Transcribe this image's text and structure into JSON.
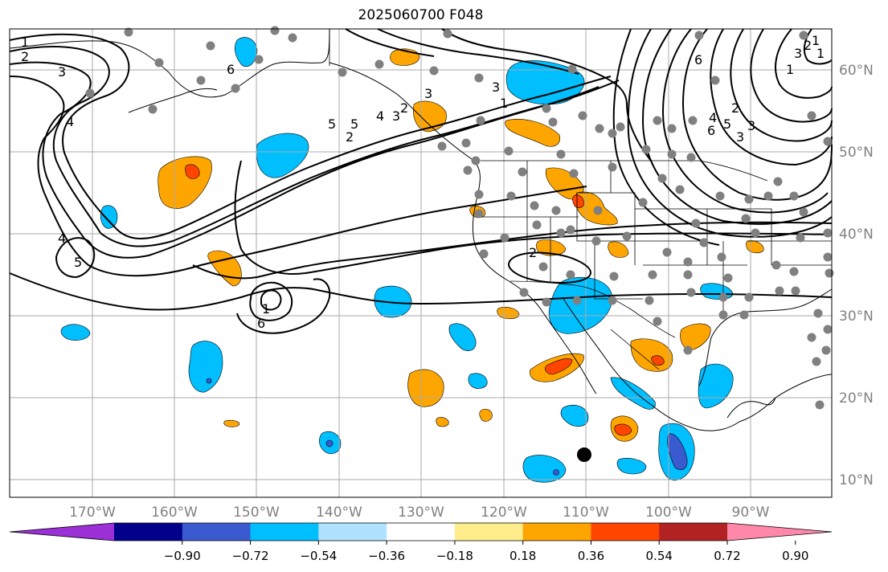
{
  "title": "2025060700 F048",
  "lon_labels": [
    "170°W",
    "160°W",
    "150°W",
    "140°W",
    "130°W",
    "120°W",
    "110°W",
    "100°W",
    "90°W"
  ],
  "lat_labels": [
    "60°N",
    "50°N",
    "40°N",
    "30°N",
    "20°N",
    "10°N"
  ],
  "colorbar": {
    "tick_labels": [
      "−0.90",
      "−0.72",
      "−0.54",
      "−0.36",
      "−0.18",
      "0.18",
      "0.36",
      "0.54",
      "0.72",
      "0.90"
    ],
    "colors": [
      "#9b30d6",
      "#00008b",
      "#3a5bd0",
      "#00bfff",
      "#b0e2ff",
      "#ffffff",
      "#ffec8b",
      "#ffa500",
      "#ff4500",
      "#b22222",
      "#ff88aa"
    ]
  },
  "contour_labels": [
    "1",
    "2",
    "3",
    "4",
    "5",
    "6",
    "1",
    "2",
    "3",
    "4",
    "5",
    "6",
    "1",
    "2",
    "3",
    "1",
    "3",
    "2",
    "3",
    "6",
    "5",
    "4",
    "3",
    "2",
    "1",
    "1",
    "2",
    "3",
    "6",
    "5",
    "4"
  ],
  "colors": {
    "grid": "#aaaaaa",
    "station": "#808080",
    "contour": "#000000"
  }
}
